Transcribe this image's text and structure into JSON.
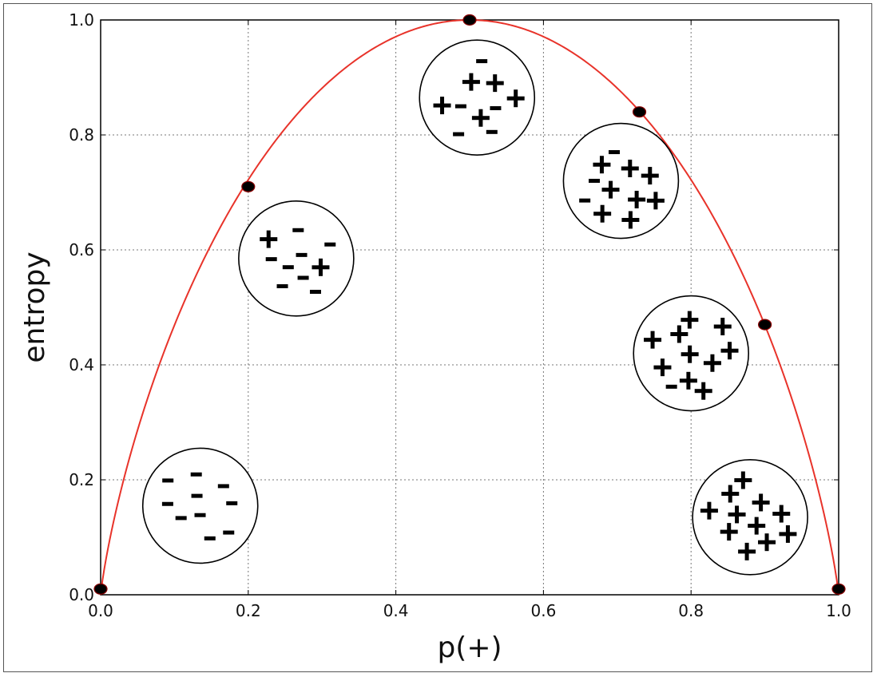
{
  "chart_data": {
    "type": "line",
    "xlabel": "p(+)",
    "ylabel": "entropy",
    "xlim": [
      0.0,
      1.0
    ],
    "ylim": [
      0.0,
      1.0
    ],
    "x_ticks": [
      "0.0",
      "0.2",
      "0.4",
      "0.6",
      "0.8",
      "1.0"
    ],
    "y_ticks": [
      "0.0",
      "0.2",
      "0.4",
      "0.6",
      "0.8",
      "1.0"
    ],
    "grid": true,
    "colors": {
      "curve": "#e8332a",
      "marker": "#000000",
      "marker_edge": "#8b0000"
    },
    "series": [
      {
        "function": "binary_entropy"
      }
    ],
    "points": [
      {
        "x": 0.0,
        "y": 0.01
      },
      {
        "x": 0.2,
        "y": 0.71
      },
      {
        "x": 0.5,
        "y": 1.0
      },
      {
        "x": 0.73,
        "y": 0.84
      },
      {
        "x": 0.9,
        "y": 0.47
      },
      {
        "x": 1.0,
        "y": 0.01
      }
    ],
    "annotations": [
      {
        "kind": "sample-circle",
        "x": 0.135,
        "y": 0.155,
        "plus": 0,
        "minus": 10
      },
      {
        "kind": "sample-circle",
        "x": 0.265,
        "y": 0.585,
        "plus": 2,
        "minus": 8
      },
      {
        "kind": "sample-circle",
        "x": 0.51,
        "y": 0.865,
        "plus": 5,
        "minus": 5
      },
      {
        "kind": "sample-circle",
        "x": 0.705,
        "y": 0.72,
        "plus": 8,
        "minus": 3
      },
      {
        "kind": "sample-circle",
        "x": 0.8,
        "y": 0.42,
        "plus": 10,
        "minus": 1
      },
      {
        "kind": "sample-circle",
        "x": 0.88,
        "y": 0.135,
        "plus": 11,
        "minus": 0
      }
    ]
  }
}
